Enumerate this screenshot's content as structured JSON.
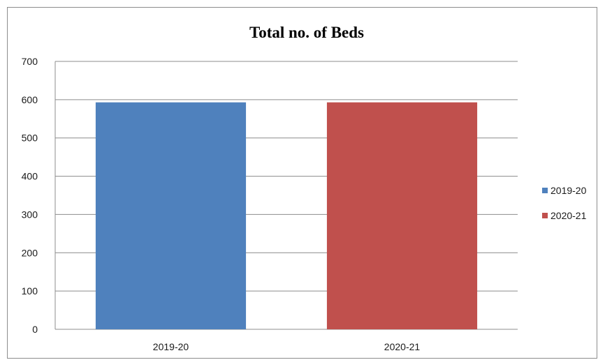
{
  "chart_data": {
    "type": "bar",
    "title": "Total no. of Beds",
    "xlabel": "",
    "ylabel": "",
    "categories": [
      "2019-20",
      "2020-21"
    ],
    "values": [
      593,
      593
    ],
    "bar_colors": [
      "#4f81bd",
      "#c0504d"
    ],
    "ylim": [
      0,
      700
    ],
    "yticks": [
      "0",
      "100",
      "200",
      "300",
      "400",
      "500",
      "600",
      "700"
    ],
    "grid": true,
    "legend": {
      "position": "right",
      "entries": [
        {
          "label": "2019-20",
          "color": "#4f81bd"
        },
        {
          "label": "2020-21",
          "color": "#c0504d"
        }
      ]
    }
  }
}
